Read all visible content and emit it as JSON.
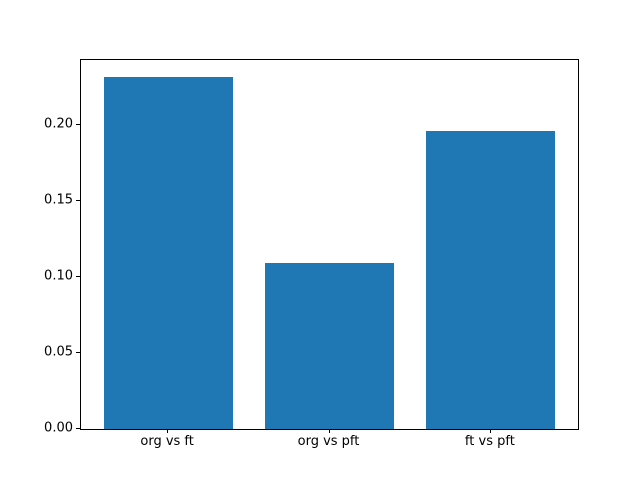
{
  "chart_data": {
    "type": "bar",
    "title": "",
    "xlabel": "",
    "ylabel": "",
    "categories": [
      "org vs ft",
      "org vs pft",
      "ft vs pft"
    ],
    "values": [
      0.232,
      0.109,
      0.196
    ],
    "ytick_labels": [
      "0.00",
      "0.05",
      "0.10",
      "0.15",
      "0.20"
    ],
    "yticks": [
      0.0,
      0.05,
      0.1,
      0.15,
      0.2
    ],
    "ylim": [
      0,
      0.243
    ],
    "xlim": [
      -0.54,
      2.54
    ],
    "bar_width": 0.8,
    "bar_color": "#1f77b4",
    "grid": false,
    "legend_position": "none",
    "background_color": "#ffffff",
    "spine_color": "#000000"
  }
}
